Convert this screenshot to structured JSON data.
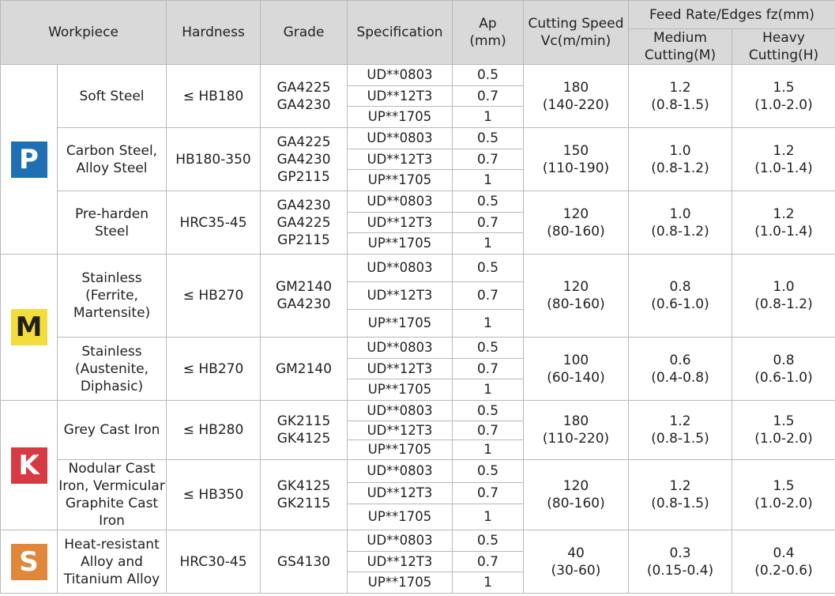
{
  "headers": {
    "workpiece": "Workpiece",
    "hardness": "Hardness",
    "grade": "Grade",
    "specification": "Specification",
    "ap": "Ap\n(mm)",
    "cutting_speed": "Cutting Speed\nVc(m/min)",
    "feed_rate": "Feed Rate/Edges fz(mm)",
    "medium": "Medium\nCutting(M)",
    "heavy": "Heavy\nCutting(H)"
  },
  "groups": [
    {
      "iso": "P",
      "color": "#1f6fb3",
      "text_dark": false,
      "rows": [
        {
          "workpiece": "Soft Steel",
          "hardness": "≤ HB180",
          "grade": "GA4225\nGA4230",
          "specs": [
            "UD**0803",
            "UD**12T3",
            "UP**1705"
          ],
          "ap": [
            "0.5",
            "0.7",
            "1"
          ],
          "vc": "180\n(140-220)",
          "medium": "1.2\n(0.8-1.5)",
          "heavy": "1.5\n(1.0-2.0)"
        },
        {
          "workpiece": "Carbon Steel,\nAlloy Steel",
          "hardness": "HB180-350",
          "grade": "GA4225\nGA4230\nGP2115",
          "specs": [
            "UD**0803",
            "UD**12T3",
            "UP**1705"
          ],
          "ap": [
            "0.5",
            "0.7",
            "1"
          ],
          "vc": "150\n(110-190)",
          "medium": "1.0\n(0.8-1.2)",
          "heavy": "1.2\n(1.0-1.4)"
        },
        {
          "workpiece": "Pre-harden\nSteel",
          "hardness": "HRC35-45",
          "grade": "GA4230\nGA4225\nGP2115",
          "specs": [
            "UD**0803",
            "UD**12T3",
            "UP**1705"
          ],
          "ap": [
            "0.5",
            "0.7",
            "1"
          ],
          "vc": "120\n(80-160)",
          "medium": "1.0\n(0.8-1.2)",
          "heavy": "1.2\n(1.0-1.4)"
        }
      ]
    },
    {
      "iso": "M",
      "color": "#f2dd3a",
      "text_dark": true,
      "rows": [
        {
          "workpiece": "Stainless\n(Ferrite,\nMartensite)",
          "hardness": "≤ HB270",
          "grade": "GM2140\nGA4230",
          "specs": [
            "UD**0803",
            "UD**12T3",
            "UP**1705"
          ],
          "ap": [
            "0.5",
            "0.7",
            "1"
          ],
          "vc": "120\n(80-160)",
          "medium": "0.8\n(0.6-1.0)",
          "heavy": "1.0\n(0.8-1.2)"
        },
        {
          "workpiece": "Stainless\n(Austenite,\nDiphasic)",
          "hardness": "≤ HB270",
          "grade": "GM2140",
          "specs": [
            "UD**0803",
            "UD**12T3",
            "UP**1705"
          ],
          "ap": [
            "0.5",
            "0.7",
            "1"
          ],
          "vc": "100\n(60-140)",
          "medium": "0.6\n(0.4-0.8)",
          "heavy": "0.8\n(0.6-1.0)"
        }
      ]
    },
    {
      "iso": "K",
      "color": "#d83a44",
      "text_dark": false,
      "rows": [
        {
          "workpiece": "Grey Cast Iron",
          "hardness": "≤ HB280",
          "grade": "GK2115\nGK4125",
          "specs": [
            "UD**0803",
            "UD**12T3",
            "UP**1705"
          ],
          "ap": [
            "0.5",
            "0.7",
            "1"
          ],
          "vc": "180\n(110-220)",
          "medium": "1.2\n(0.8-1.5)",
          "heavy": "1.5\n(1.0-2.0)"
        },
        {
          "workpiece": "Nodular Cast\nIron, Vermicular\nGraphite Cast\nIron",
          "hardness": "≤ HB350",
          "grade": "GK4125\nGK2115",
          "specs": [
            "UD**0803",
            "UD**12T3",
            "UP**1705"
          ],
          "ap": [
            "0.5",
            "0.7",
            "1"
          ],
          "vc": "120\n(80-160)",
          "medium": "1.2\n(0.8-1.5)",
          "heavy": "1.5\n(1.0-2.0)"
        }
      ]
    },
    {
      "iso": "S",
      "color": "#e0883a",
      "text_dark": false,
      "rows": [
        {
          "workpiece": "Heat-resistant\nAlloy  and\nTitanium Alloy",
          "hardness": "HRC30-45",
          "grade": "GS4130",
          "specs": [
            "UD**0803",
            "UD**12T3",
            "UP**1705"
          ],
          "ap": [
            "0.5",
            "0.7",
            "1"
          ],
          "vc": "40\n(30-60)",
          "medium": "0.3\n(0.15-0.4)",
          "heavy": "0.4\n(0.2-0.6)"
        }
      ]
    }
  ]
}
